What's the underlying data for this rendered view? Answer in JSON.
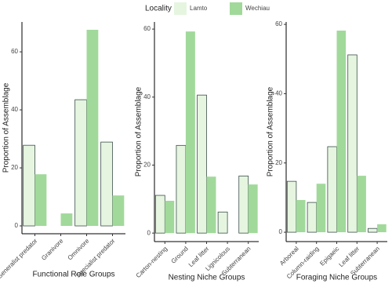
{
  "legend": {
    "title": "Locality"
  },
  "chart_data": [
    {
      "type": "bar",
      "x_label": "Functional Role Groups",
      "y_label": "Proportion of Assemblage",
      "categories": [
        "Generalist predator",
        "Granivore",
        "Omnivore",
        "Specialist predator"
      ],
      "series": [
        {
          "name": "Lamto",
          "color": "#e5f5e0",
          "values": [
            27.8,
            0,
            43.5,
            28.9
          ]
        },
        {
          "name": "Wechiau",
          "color": "#a1d99b",
          "values": [
            17.8,
            4.3,
            67.6,
            10.5
          ]
        }
      ],
      "ylim": [
        -2.7,
        70.3
      ],
      "yticks": [
        0,
        20,
        40,
        60
      ]
    },
    {
      "type": "bar",
      "x_label": "Nesting Niche Groups",
      "y_label": "Proportion of Assemblage",
      "categories": [
        "Carton-nesting",
        "Ground",
        "Leaf litter",
        "Lignicolous",
        "Subterranean"
      ],
      "series": [
        {
          "name": "Lamto",
          "color": "#e5f5e0",
          "values": [
            11.1,
            25.8,
            40.6,
            6.2,
            16.8
          ]
        },
        {
          "name": "Wechiau",
          "color": "#a1d99b",
          "values": [
            9.5,
            59.3,
            16.6,
            0,
            14.3
          ]
        }
      ],
      "ylim": [
        -2.5,
        62.1
      ],
      "yticks": [
        0,
        20,
        40,
        60
      ]
    },
    {
      "type": "bar",
      "x_label": "Foraging Niche Groups",
      "y_label": "Proportion of Assemblage",
      "categories": [
        "Arboreal",
        "Column-raiding",
        "Epigaeic",
        "Leaf litter",
        "Subterranean"
      ],
      "series": [
        {
          "name": "Lamto",
          "color": "#e5f5e0",
          "values": [
            14.7,
            8.6,
            24.7,
            51.2,
            1.1
          ]
        },
        {
          "name": "Wechiau",
          "color": "#a1d99b",
          "values": [
            9.3,
            14.0,
            58.2,
            16.3,
            2.3
          ]
        }
      ],
      "ylim": [
        -2.7,
        60.7
      ],
      "yticks": [
        0,
        20,
        40,
        60
      ]
    }
  ]
}
